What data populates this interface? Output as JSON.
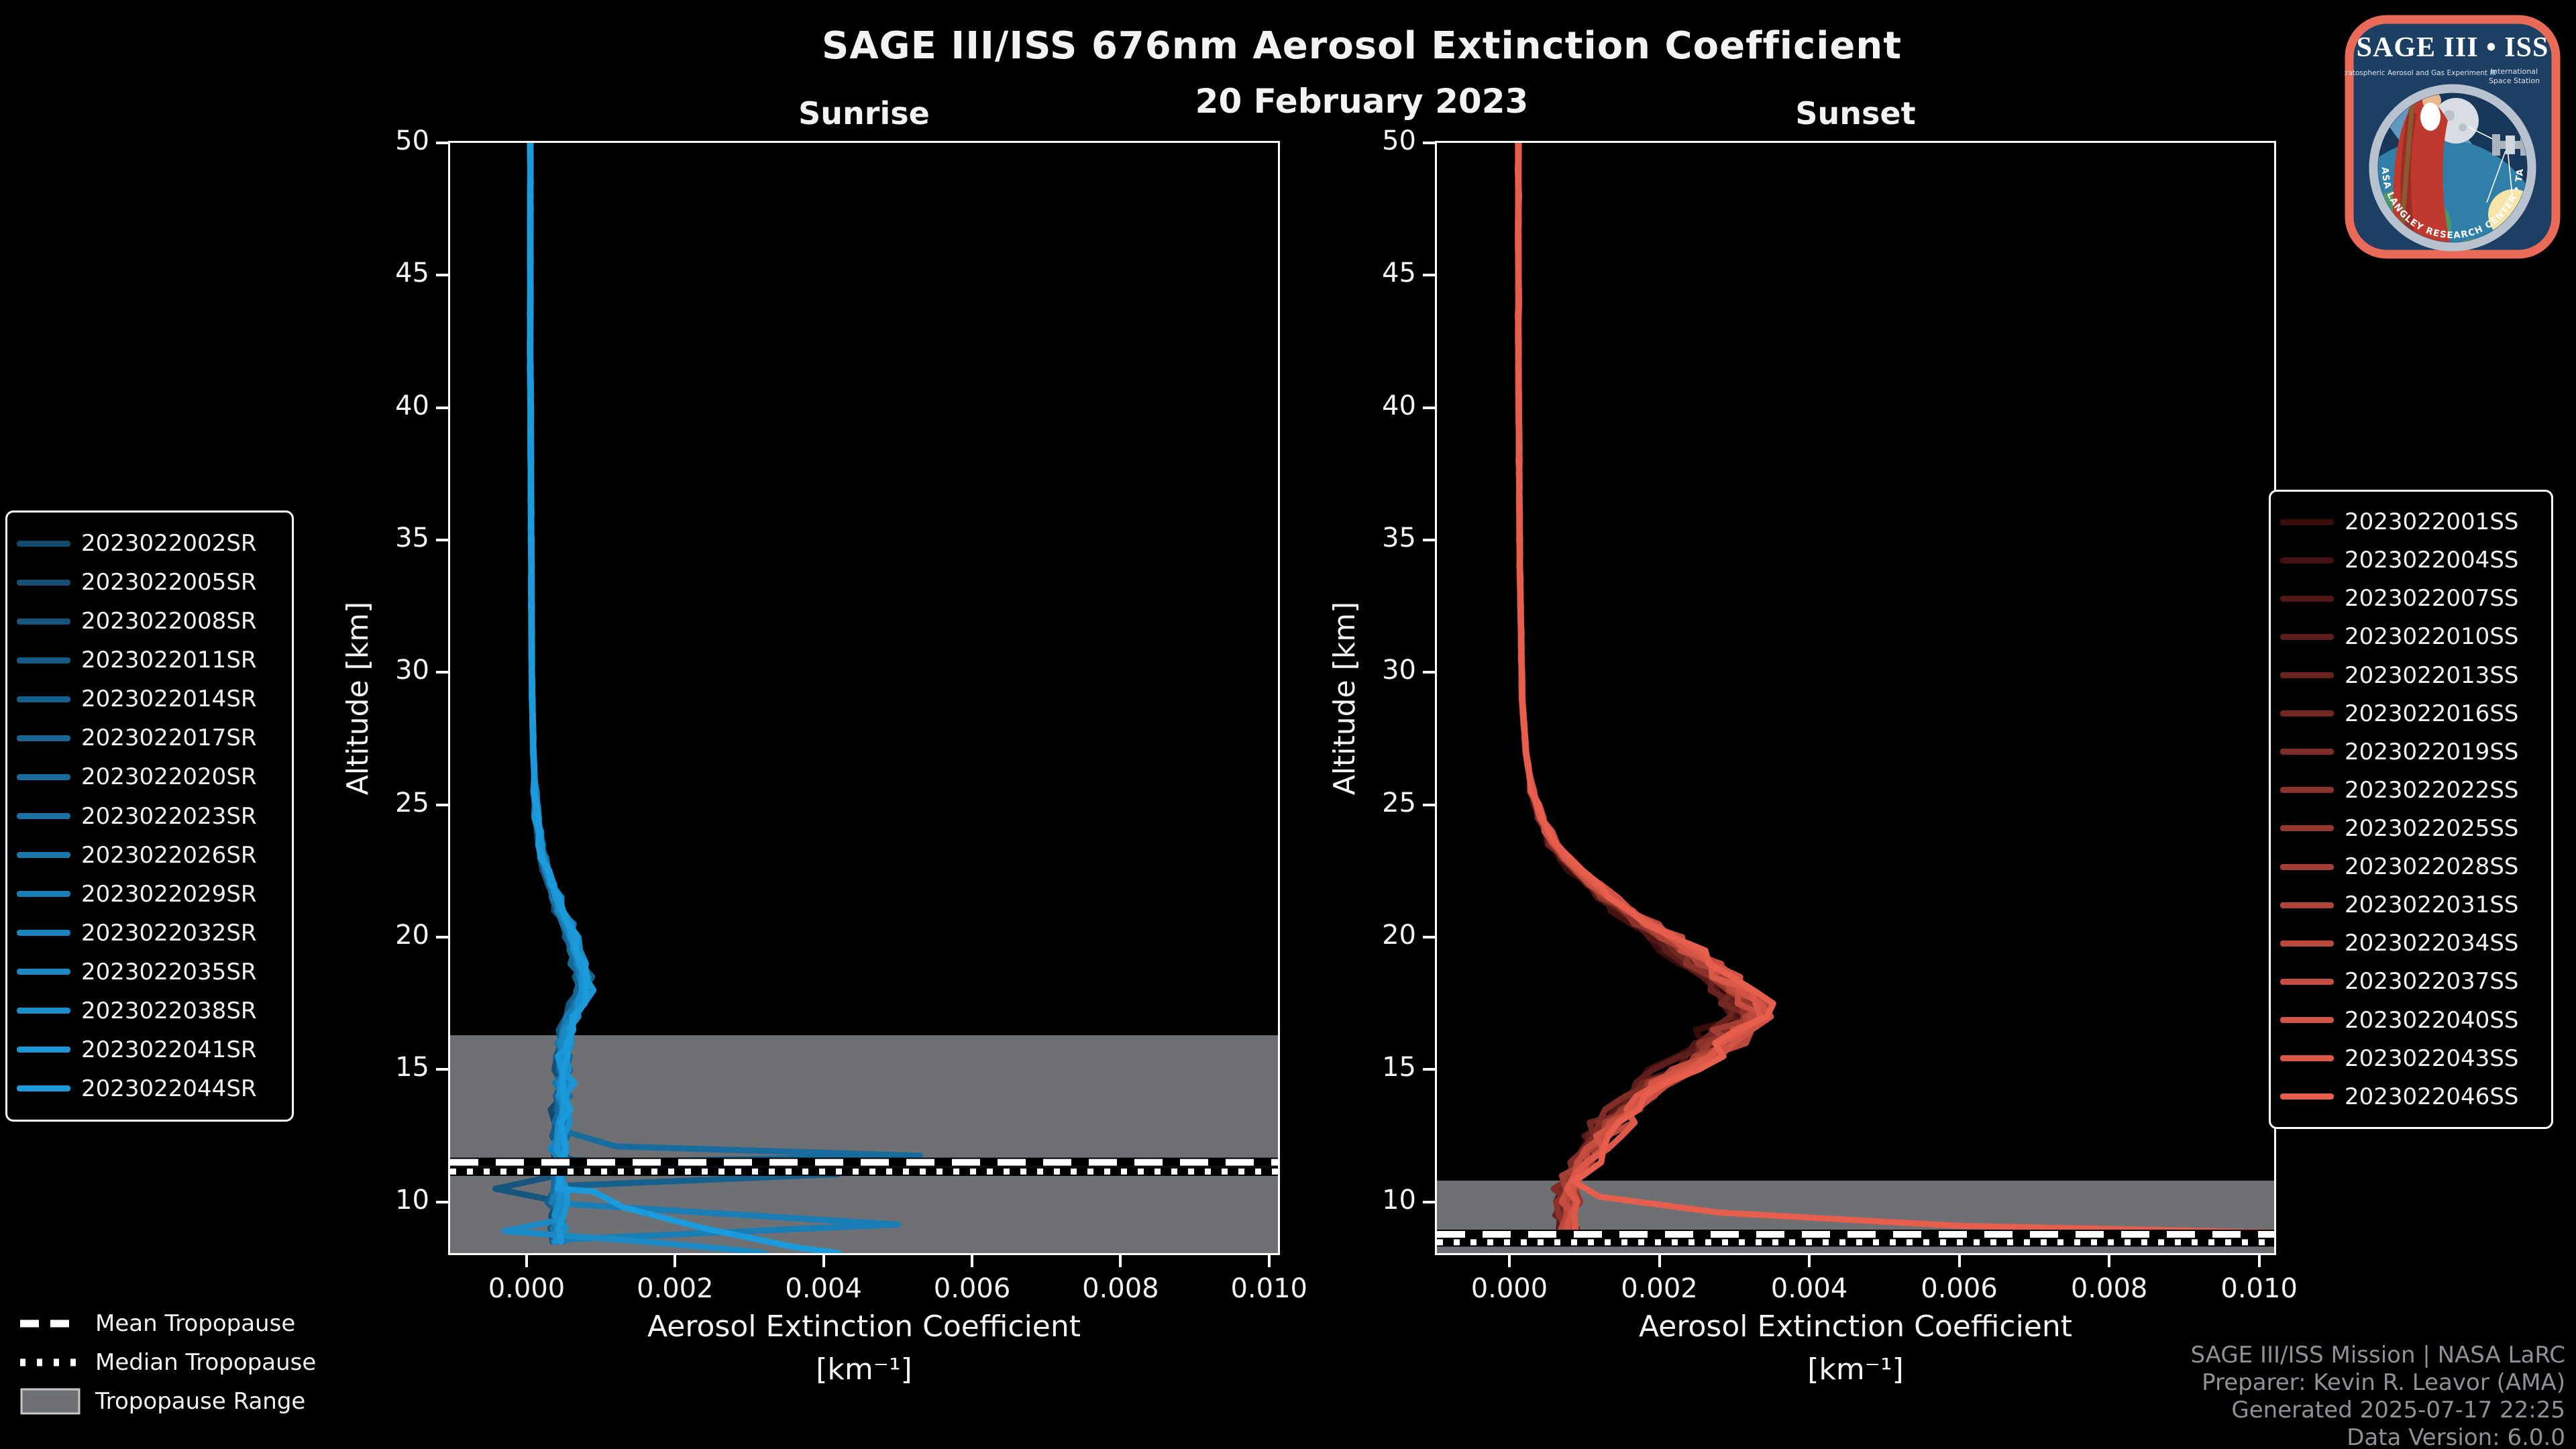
{
  "header": {
    "title": "SAGE III/ISS 676nm Aerosol Extinction Coefficient",
    "subtitle": "20 February 2023"
  },
  "watermark": {
    "line1": "SAGE III/ISS Mission | NASA LaRC",
    "line2": "Preparer: Kevin R. Leavor (AMA)",
    "line3": "Generated 2025-07-17 22:25",
    "line4": "Data Version: 6.0.0"
  },
  "tropopause_legend": {
    "mean_label": "Mean Tropopause",
    "median_label": "Median Tropopause",
    "range_label": "Tropopause Range"
  },
  "logo": {
    "title": "SAGE III • ISS",
    "sub_left": "Stratospheric Aerosol and Gas Experiment III",
    "sub_right_1": "International",
    "sub_right_2": "Space Station",
    "ring_text": "BALL  •  NASA LANGLEY RESEARCH CENTER  •  TAS-I  •  ESA",
    "border_color": "#e96a57",
    "bg_color": "#1c3f63"
  },
  "colors": {
    "background": "#000000",
    "spine": "#ffffff",
    "text": "#f2f2f2",
    "tropopause_band": "#6e7073",
    "tropopause_line": "#ffffff",
    "watermark_text": "#8f9196"
  },
  "chart_data": [
    {
      "type": "line",
      "panel": "sunrise",
      "title": "Sunrise",
      "xlabel": "Aerosol Extinction Coefficient",
      "xunit": "[km⁻¹]",
      "ylabel": "Altitude [km]",
      "xlim": [
        -0.00103,
        0.01012
      ],
      "ylim": [
        8.07,
        50
      ],
      "xticks": [
        0.0,
        0.002,
        0.004,
        0.006,
        0.008,
        0.01
      ],
      "xtick_labels": [
        "0.000",
        "0.002",
        "0.004",
        "0.006",
        "0.008",
        "0.010"
      ],
      "yticks": [
        10,
        15,
        20,
        25,
        30,
        35,
        40,
        45,
        50
      ],
      "grid": false,
      "legend_position": "outside-left",
      "tropopause": {
        "mean_km": 11.5,
        "median_km": 11.15,
        "range_top_km": 16.3,
        "range_bottom_km": 8.07
      },
      "mean_profile": [
        [
          50,
          5e-05
        ],
        [
          42,
          5e-05
        ],
        [
          36,
          6e-05
        ],
        [
          30,
          7e-05
        ],
        [
          27,
          9e-05
        ],
        [
          25,
          0.00012
        ],
        [
          24,
          0.00016
        ],
        [
          23,
          0.00022
        ],
        [
          22,
          0.00032
        ],
        [
          21,
          0.00046
        ],
        [
          20,
          0.0006
        ],
        [
          19,
          0.0007
        ],
        [
          18.3,
          0.0008
        ],
        [
          17.6,
          0.00068
        ],
        [
          17,
          0.00058
        ],
        [
          16.3,
          0.00052
        ],
        [
          15.5,
          0.00048
        ],
        [
          14.5,
          0.0005
        ],
        [
          13.5,
          0.00048
        ],
        [
          12.5,
          0.00042
        ],
        [
          11.5,
          0.00044
        ],
        [
          10.5,
          0.00042
        ],
        [
          9.5,
          0.00044
        ],
        [
          8.5,
          0.00042
        ],
        [
          8.07,
          0.00045
        ]
      ],
      "jitter": {
        "amplitude_rel": 0.22,
        "amplitude_abs": 0.0001,
        "start_alt": 26
      },
      "value_floor": -0.00045,
      "series": [
        {
          "label": "2023022002SR",
          "color": "#14496e"
        },
        {
          "label": "2023022005SR",
          "color": "#154f76"
        },
        {
          "label": "2023022008SR",
          "color": "#15557e"
        },
        {
          "label": "2023022011SR",
          "color": "#165b86"
        },
        {
          "label": "2023022014SR",
          "color": "#16608d"
        },
        {
          "label": "2023022017SR",
          "color": "#176695"
        },
        {
          "label": "2023022020SR",
          "color": "#176c9d"
        },
        {
          "label": "2023022023SR",
          "color": "#1872a5"
        },
        {
          "label": "2023022026SR",
          "color": "#1878ad"
        },
        {
          "label": "2023022029SR",
          "color": "#197eb5"
        },
        {
          "label": "2023022032SR",
          "color": "#1984bd"
        },
        {
          "label": "2023022035SR",
          "color": "#1a89c4"
        },
        {
          "label": "2023022038SR",
          "color": "#1a8fcc"
        },
        {
          "label": "2023022041SR",
          "color": "#1b95d4"
        },
        {
          "label": "2023022044SR",
          "color": "#1b9bdc"
        }
      ],
      "cloud_features": [
        {
          "series_index": 6,
          "points": [
            [
              12.6,
              0.0006
            ],
            [
              12.1,
              0.0012
            ],
            [
              11.75,
              0.0053
            ],
            [
              11.5,
              0.0008
            ],
            [
              11.2,
              0.0005
            ]
          ]
        },
        {
          "series_index": 4,
          "points": [
            [
              11.6,
              0.0006
            ],
            [
              11.05,
              0.0042
            ],
            [
              10.6,
              0.0004
            ]
          ]
        },
        {
          "series_index": 9,
          "points": [
            [
              9.9,
              0.0007
            ],
            [
              9.15,
              0.005
            ],
            [
              8.6,
              0.0006
            ]
          ]
        },
        {
          "series_index": 2,
          "points": [
            [
              11.0,
              0.0004
            ],
            [
              10.5,
              -0.00042
            ],
            [
              10.1,
              0.0003
            ]
          ]
        },
        {
          "series_index": 11,
          "points": [
            [
              9.3,
              0.0004
            ],
            [
              8.9,
              -0.0003
            ],
            [
              8.5,
              0.0016
            ],
            [
              8.2,
              0.0028
            ],
            [
              8.07,
              0.0032
            ]
          ]
        },
        {
          "series_index": 14,
          "points": [
            [
              10.4,
              0.0009
            ],
            [
              9.8,
              0.0013
            ],
            [
              9.0,
              0.0024
            ],
            [
              8.3,
              0.0036
            ],
            [
              8.07,
              0.0042
            ]
          ]
        }
      ]
    },
    {
      "type": "line",
      "panel": "sunset",
      "title": "Sunset",
      "xlabel": "Aerosol Extinction Coefficient",
      "xunit": "[km⁻¹]",
      "ylabel": "Altitude [km]",
      "xlim": [
        -0.000966,
        0.0102
      ],
      "ylim": [
        8.07,
        50
      ],
      "xticks": [
        0.0,
        0.002,
        0.004,
        0.006,
        0.008,
        0.01
      ],
      "xtick_labels": [
        "0.000",
        "0.002",
        "0.004",
        "0.006",
        "0.008",
        "0.010"
      ],
      "yticks": [
        10,
        15,
        20,
        25,
        30,
        35,
        40,
        45,
        50
      ],
      "grid": false,
      "legend_position": "outside-right",
      "tropopause": {
        "mean_km": 8.78,
        "median_km": 8.48,
        "range_top_km": 10.81,
        "range_bottom_km": 8.07
      },
      "mean_profile": [
        [
          50,
          0.00012
        ],
        [
          42,
          0.00012
        ],
        [
          34,
          0.00014
        ],
        [
          29,
          0.00017
        ],
        [
          27,
          0.00022
        ],
        [
          25.5,
          0.0003
        ],
        [
          24.5,
          0.00042
        ],
        [
          23.5,
          0.0006
        ],
        [
          22.5,
          0.0009
        ],
        [
          21.5,
          0.0013
        ],
        [
          20.5,
          0.0018
        ],
        [
          19.5,
          0.0023
        ],
        [
          18.5,
          0.0028
        ],
        [
          17.8,
          0.0031
        ],
        [
          17.2,
          0.0033
        ],
        [
          16.6,
          0.0031
        ],
        [
          16,
          0.0028
        ],
        [
          15.2,
          0.0023
        ],
        [
          14.4,
          0.0019
        ],
        [
          13.6,
          0.0016
        ],
        [
          12.8,
          0.0013
        ],
        [
          12,
          0.0011
        ],
        [
          11.2,
          0.0009
        ],
        [
          10.4,
          0.0008
        ],
        [
          9.6,
          0.00075
        ],
        [
          8.8,
          0.0008
        ],
        [
          8.07,
          0.0009
        ]
      ],
      "jitter": {
        "amplitude_rel": 0.16,
        "amplitude_abs": 0.00012,
        "start_alt": 26
      },
      "value_floor": 2e-05,
      "series": [
        {
          "label": "2023022001SS",
          "color": "#3a0d0d"
        },
        {
          "label": "2023022004SS",
          "color": "#461211"
        },
        {
          "label": "2023022007SS",
          "color": "#511815"
        },
        {
          "label": "2023022010SS",
          "color": "#5d1d1a"
        },
        {
          "label": "2023022013SS",
          "color": "#68231e"
        },
        {
          "label": "2023022016SS",
          "color": "#742822"
        },
        {
          "label": "2023022019SS",
          "color": "#802d27"
        },
        {
          "label": "2023022022SS",
          "color": "#8b332b"
        },
        {
          "label": "2023022025SS",
          "color": "#97382f"
        },
        {
          "label": "2023022028SS",
          "color": "#a23e33"
        },
        {
          "label": "2023022031SS",
          "color": "#ae4338"
        },
        {
          "label": "2023022034SS",
          "color": "#ba483c"
        },
        {
          "label": "2023022037SS",
          "color": "#c54e40"
        },
        {
          "label": "2023022040SS",
          "color": "#d15345"
        },
        {
          "label": "2023022043SS",
          "color": "#dc5949"
        },
        {
          "label": "2023022046SS",
          "color": "#e85e4d"
        }
      ],
      "cloud_features": [
        {
          "series_index": 15,
          "points": [
            [
              10.8,
              0.00085
            ],
            [
              10.2,
              0.0012
            ],
            [
              9.6,
              0.0028
            ],
            [
              9.1,
              0.006
            ],
            [
              8.85,
              0.0102
            ],
            [
              8.75,
              0.0115
            ]
          ]
        }
      ]
    }
  ]
}
